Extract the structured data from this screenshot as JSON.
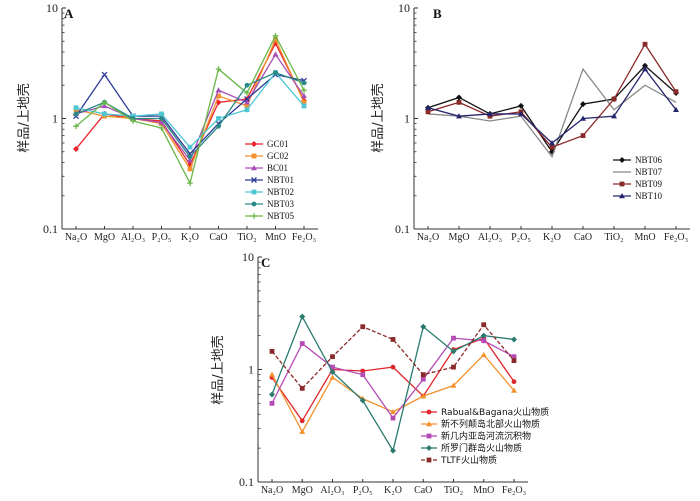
{
  "chart_data": [
    {
      "type": "line",
      "panel": "A",
      "ylabel": "样品/上地壳",
      "yscale": "log",
      "ylim": [
        0.1,
        10
      ],
      "yticks": [
        "0.1",
        "1",
        "10"
      ],
      "categories": [
        "Na₂O",
        "MgO",
        "Al₂O₃",
        "P₂O₅",
        "K₂O",
        "CaO",
        "TiO₂",
        "MnO",
        "Fe₂O₃"
      ],
      "legend_position": "right",
      "series": [
        {
          "name": "GC01",
          "color": "#e8232b",
          "marker": "diamond",
          "values": [
            0.53,
            1.1,
            1.0,
            0.95,
            0.38,
            1.4,
            1.5,
            4.8,
            1.45
          ]
        },
        {
          "name": "GC02",
          "color": "#f4912e",
          "marker": "square",
          "values": [
            1.2,
            1.05,
            1.0,
            0.9,
            0.35,
            1.6,
            1.3,
            5.2,
            1.4
          ]
        },
        {
          "name": "BC01",
          "color": "#a64fb5",
          "marker": "triangle",
          "values": [
            1.1,
            1.3,
            1.0,
            0.92,
            0.42,
            1.8,
            1.4,
            3.8,
            1.6
          ]
        },
        {
          "name": "NBT01",
          "color": "#2d3a96",
          "marker": "x",
          "values": [
            1.05,
            2.5,
            1.05,
            1.05,
            0.48,
            0.9,
            1.5,
            2.5,
            2.2
          ]
        },
        {
          "name": "NBT02",
          "color": "#4ec6d4",
          "marker": "square",
          "values": [
            1.25,
            1.1,
            1.05,
            1.1,
            0.55,
            1.0,
            1.2,
            2.6,
            1.3
          ]
        },
        {
          "name": "NBT03",
          "color": "#2a8a86",
          "marker": "circle",
          "values": [
            1.1,
            1.4,
            1.0,
            1.0,
            0.45,
            0.85,
            2.0,
            2.6,
            2.1
          ]
        },
        {
          "name": "NBT05",
          "color": "#6ab74a",
          "marker": "plus",
          "values": [
            0.85,
            1.4,
            0.95,
            0.82,
            0.26,
            2.8,
            1.7,
            5.6,
            1.8
          ]
        }
      ]
    },
    {
      "type": "line",
      "panel": "B",
      "ylabel": "样品/上地壳",
      "yscale": "log",
      "ylim": [
        0.1,
        10
      ],
      "yticks": [
        "0.1",
        "1",
        "10"
      ],
      "categories": [
        "Na₂O",
        "MgO",
        "Al₂O₃",
        "P₂O₅",
        "K₂O",
        "CaO",
        "TiO₂",
        "MnO",
        "Fe₂O₃"
      ],
      "legend_position": "right",
      "series": [
        {
          "name": "NBT06",
          "color": "#111111",
          "marker": "diamond",
          "values": [
            1.25,
            1.55,
            1.1,
            1.3,
            0.5,
            1.35,
            1.5,
            3.0,
            1.7
          ]
        },
        {
          "name": "NBT07",
          "color": "#888888",
          "marker": "none",
          "values": [
            1.1,
            1.05,
            0.95,
            1.05,
            0.45,
            2.8,
            1.2,
            2.0,
            1.4
          ]
        },
        {
          "name": "NBT09",
          "color": "#8b2a2a",
          "marker": "square",
          "values": [
            1.15,
            1.4,
            1.05,
            1.15,
            0.55,
            0.7,
            1.5,
            4.7,
            1.75
          ]
        },
        {
          "name": "NBT10",
          "color": "#26266e",
          "marker": "triangle",
          "values": [
            1.25,
            1.05,
            1.1,
            1.1,
            0.6,
            1.0,
            1.05,
            2.8,
            1.2
          ]
        }
      ]
    },
    {
      "type": "line",
      "panel": "C",
      "ylabel": "样品/上地壳",
      "yscale": "log",
      "ylim": [
        0.1,
        10
      ],
      "yticks": [
        "0.1",
        "1",
        "10"
      ],
      "categories": [
        "Na₂O",
        "MgO",
        "Al₂O₃",
        "P₂O₅",
        "K₂O",
        "CaO",
        "TiO₂",
        "MnO",
        "Fe₂O₃"
      ],
      "legend_position": "bottom-right",
      "series": [
        {
          "name": "Rabual&Bagana火山物质",
          "color": "#e0262c",
          "marker": "circle",
          "values": [
            0.85,
            0.35,
            1.0,
            0.97,
            1.05,
            0.58,
            1.5,
            1.9,
            0.78
          ]
        },
        {
          "name": "新不列颠岛北部火山物质",
          "color": "#f4912e",
          "marker": "triangle",
          "values": [
            0.9,
            0.28,
            0.85,
            0.55,
            0.42,
            0.58,
            0.72,
            1.35,
            0.65
          ]
        },
        {
          "name": "新几内亚岛河流沉积物",
          "color": "#b54bb5",
          "marker": "square",
          "values": [
            0.5,
            1.7,
            1.05,
            0.9,
            0.37,
            0.82,
            1.9,
            1.8,
            1.3
          ]
        },
        {
          "name": "所罗门群岛火山物质",
          "color": "#2a7a6e",
          "marker": "diamond",
          "values": [
            0.6,
            2.95,
            0.95,
            0.53,
            0.19,
            2.4,
            1.45,
            2.0,
            1.85
          ]
        },
        {
          "name": "TLTF火山物质",
          "color": "#8b2a2a",
          "marker": "square",
          "dash": true,
          "values": [
            1.45,
            0.68,
            1.3,
            2.4,
            1.85,
            0.9,
            1.05,
            2.5,
            1.2
          ]
        }
      ]
    }
  ]
}
